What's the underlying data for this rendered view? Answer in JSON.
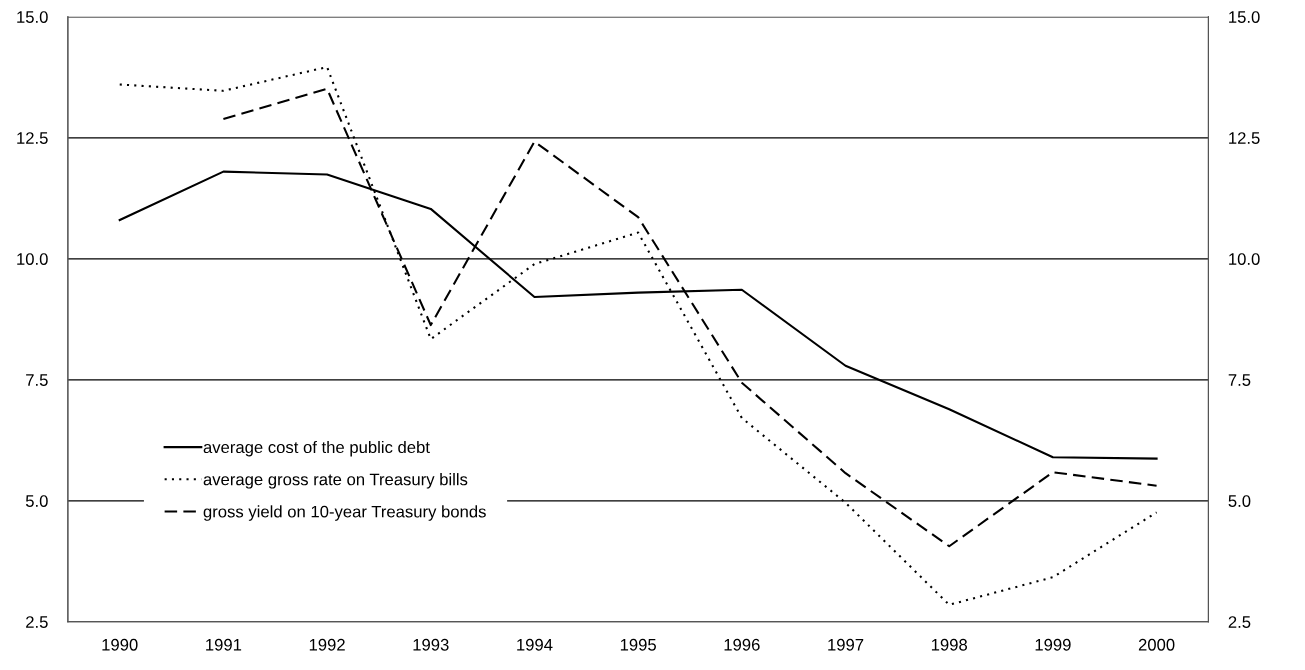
{
  "chart_data": {
    "type": "line",
    "categories": [
      "1990",
      "1991",
      "1992",
      "1993",
      "1994",
      "1995",
      "1996",
      "1997",
      "1998",
      "1999",
      "2000"
    ],
    "series": [
      {
        "name": "average cost of the public debt",
        "color": "#000000",
        "line_style": "solid",
        "values": [
          10.8,
          11.8,
          11.74,
          11.03,
          9.21,
          9.3,
          9.36,
          7.79,
          6.89,
          5.9,
          5.87
        ]
      },
      {
        "name": "average gross rate on Treasury bills",
        "color": "#000000",
        "line_style": "dotted",
        "values": [
          13.6,
          13.47,
          13.96,
          8.34,
          9.89,
          10.54,
          6.71,
          4.96,
          2.85,
          3.42,
          4.76
        ]
      },
      {
        "name": "gross yield on 10-year Treasury bonds",
        "color": "#000000",
        "line_style": "dashed",
        "values": [
          null,
          12.89,
          13.51,
          8.63,
          12.42,
          10.86,
          7.44,
          5.57,
          4.06,
          5.59,
          5.31
        ]
      }
    ],
    "ylim": [
      2.5,
      15
    ],
    "yticks": [
      {
        "value": 2.5,
        "label": "2.5"
      },
      {
        "value": 5,
        "label": "5.0"
      },
      {
        "value": 7.5,
        "label": "7.5"
      },
      {
        "value": 10,
        "label": "10.0"
      },
      {
        "value": 12.5,
        "label": "12.5"
      },
      {
        "value": 15,
        "label": "15.0"
      }
    ],
    "y2lim": [
      2.5,
      15
    ],
    "y2ticks": [
      {
        "value": 2.5,
        "label": "2.5"
      },
      {
        "value": 5,
        "label": "5.0"
      },
      {
        "value": 7.5,
        "label": "7.5"
      },
      {
        "value": 10,
        "label": "10.0"
      },
      {
        "value": 12.5,
        "label": "12.5"
      },
      {
        "value": 15,
        "label": "15.0"
      }
    ],
    "grid": "y",
    "legend": "bottom left"
  }
}
